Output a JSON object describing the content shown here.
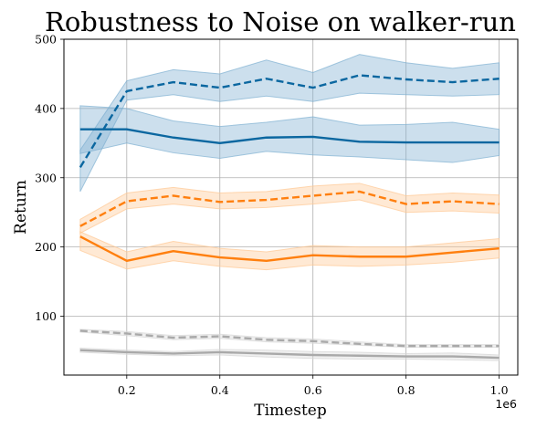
{
  "chart_data": {
    "type": "line",
    "title": "Robustness to Noise on walker-run",
    "xlabel": "Timestep",
    "ylabel": "Return",
    "x_offset_label": "1e6",
    "xlim": [
      0.065,
      1.04
    ],
    "ylim": [
      15,
      500
    ],
    "xticks": [
      0.2,
      0.4,
      0.6,
      0.8,
      1.0
    ],
    "xtick_labels": [
      "0.2",
      "0.4",
      "0.6",
      "0.8",
      "1.0"
    ],
    "yticks": [
      100,
      200,
      300,
      400,
      500
    ],
    "ytick_labels": [
      "100",
      "200",
      "300",
      "400",
      "500"
    ],
    "grid": true,
    "x": [
      0.1,
      0.2,
      0.3,
      0.4,
      0.5,
      0.6,
      0.7,
      0.8,
      0.9,
      1.0
    ],
    "series": [
      {
        "color": "#0b67a0",
        "fill": "#7fb0d2",
        "dashed": true,
        "values": [
          315,
          425,
          438,
          430,
          443,
          430,
          448,
          442,
          438,
          443
        ],
        "lower": [
          280,
          412,
          420,
          410,
          418,
          410,
          422,
          420,
          418,
          420
        ],
        "upper": [
          340,
          440,
          456,
          450,
          470,
          452,
          478,
          466,
          458,
          466
        ]
      },
      {
        "color": "#0b67a0",
        "fill": "#7fb0d2",
        "dashed": false,
        "values": [
          370,
          370,
          358,
          350,
          358,
          359,
          352,
          351,
          351,
          351
        ],
        "lower": [
          335,
          350,
          336,
          328,
          338,
          333,
          330,
          326,
          322,
          332
        ],
        "upper": [
          404,
          400,
          382,
          374,
          380,
          388,
          376,
          377,
          380,
          370
        ]
      },
      {
        "color": "#ff7f0e",
        "fill": "#ffc793",
        "dashed": true,
        "values": [
          230,
          266,
          274,
          265,
          268,
          274,
          280,
          262,
          266,
          262
        ],
        "lower": [
          220,
          255,
          262,
          255,
          257,
          262,
          268,
          250,
          252,
          249
        ],
        "upper": [
          240,
          278,
          286,
          278,
          280,
          288,
          292,
          274,
          278,
          275
        ]
      },
      {
        "color": "#ff7f0e",
        "fill": "#ffc793",
        "dashed": false,
        "values": [
          215,
          180,
          194,
          185,
          180,
          188,
          186,
          186,
          192,
          198
        ],
        "lower": [
          195,
          168,
          180,
          172,
          167,
          174,
          172,
          174,
          178,
          184
        ],
        "upper": [
          222,
          193,
          208,
          198,
          193,
          202,
          200,
          200,
          206,
          212
        ]
      },
      {
        "color": "#a9a9a9",
        "fill": "#d6d6d6",
        "dashed": true,
        "values": [
          79,
          75,
          69,
          71,
          66,
          64,
          60,
          57,
          57,
          57
        ],
        "lower": [
          77,
          72,
          66,
          68,
          63,
          61,
          58,
          55,
          55,
          55
        ],
        "upper": [
          81,
          78,
          72,
          74,
          69,
          67,
          63,
          59,
          59,
          59
        ]
      },
      {
        "color": "#a9a9a9",
        "fill": "#d6d6d6",
        "dashed": false,
        "values": [
          51,
          48,
          46,
          48,
          46,
          44,
          43,
          42,
          42,
          40
        ],
        "lower": [
          48,
          45,
          43,
          44,
          41,
          39,
          38,
          38,
          37,
          36
        ],
        "upper": [
          54,
          51,
          49,
          52,
          51,
          49,
          48,
          46,
          47,
          44
        ]
      }
    ]
  }
}
